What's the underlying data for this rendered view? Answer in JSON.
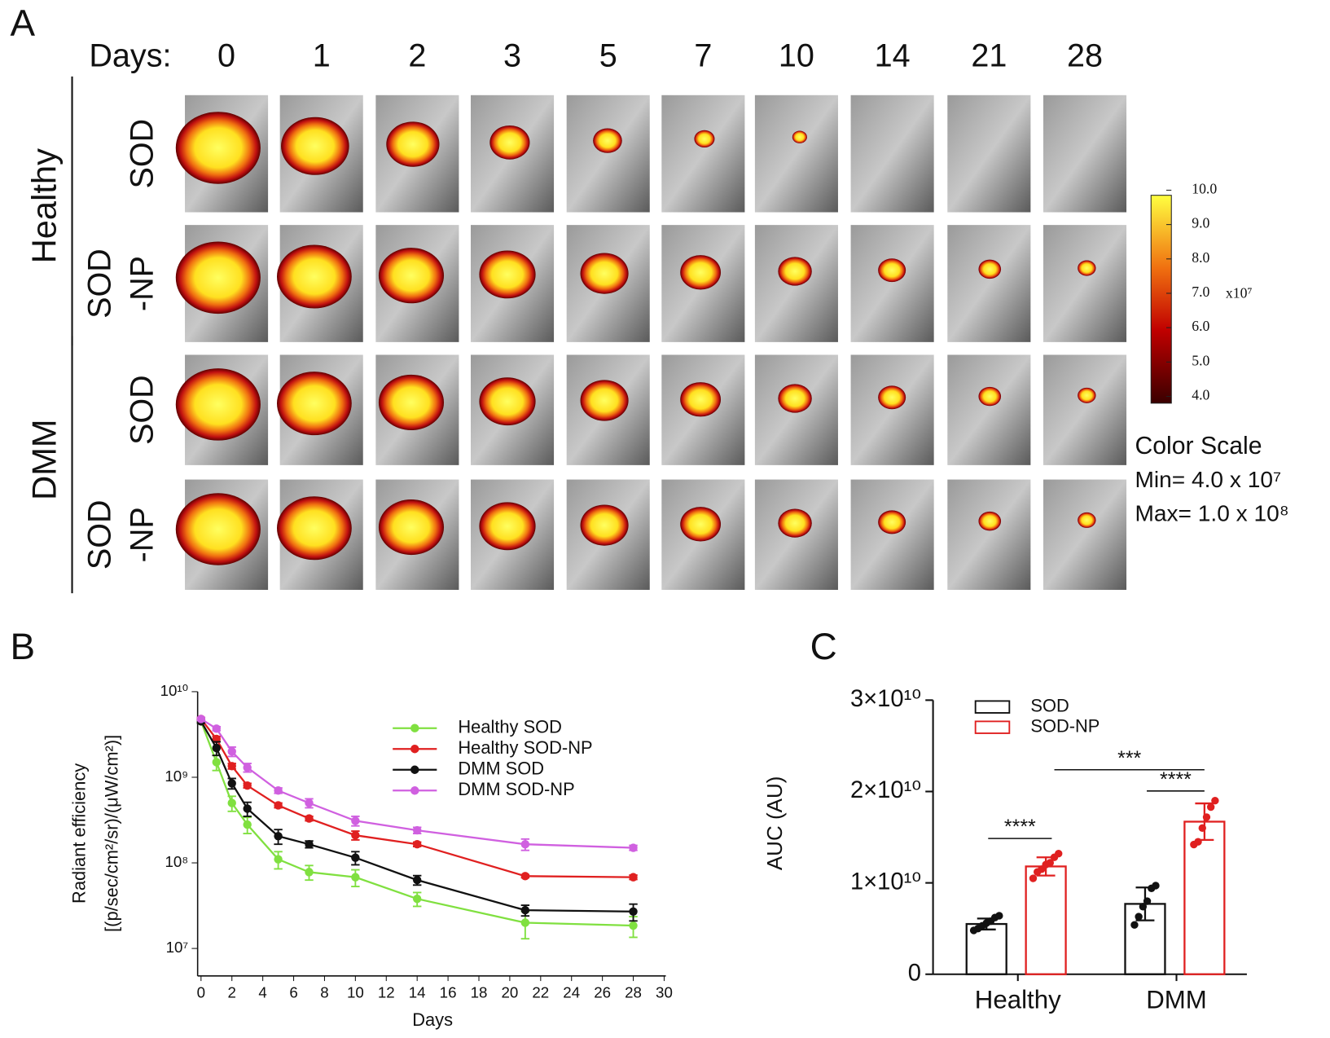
{
  "panel_a": {
    "label": "A",
    "days_label": "Days:",
    "days": [
      0,
      1,
      2,
      3,
      5,
      7,
      10,
      14,
      21,
      28
    ],
    "groups": [
      {
        "name": "Healthy",
        "rows": [
          {
            "label": [
              "SOD"
            ]
          },
          {
            "label": [
              "SOD",
              "-NP"
            ]
          }
        ]
      },
      {
        "name": "DMM",
        "rows": [
          {
            "label": [
              "SOD"
            ]
          },
          {
            "label": [
              "SOD",
              "-NP"
            ]
          }
        ]
      }
    ],
    "colorbar": {
      "lim": [
        4,
        10
      ],
      "ticks": [
        {
          "value": 4,
          "label": "4.0"
        },
        {
          "value": 5,
          "label": "5.0"
        },
        {
          "value": 6,
          "label": "6.0"
        },
        {
          "value": 7,
          "label": "7.0"
        },
        {
          "value": 8,
          "label": "8.0"
        },
        {
          "value": 9,
          "label": "9.0"
        },
        {
          "value": 10,
          "label": "10.0"
        }
      ],
      "multiplier": "x10⁷"
    },
    "color_scale": {
      "title": "Color Scale",
      "min": "Min= 4.0 x 10⁷",
      "max": "Max= 1.0 x 10⁸"
    }
  },
  "chart_data": [
    {
      "type": "line",
      "panel_label": "B",
      "x_label": "Days",
      "y_label": [
        "Radiant efficiency",
        "[(p/sec/cm²/sr)/(μW/cm²)]"
      ],
      "x": [
        0,
        1,
        2,
        3,
        5,
        7,
        10,
        14,
        21,
        28
      ],
      "xlim": [
        0,
        30
      ],
      "xticks": [
        0,
        2,
        4,
        6,
        8,
        10,
        12,
        14,
        16,
        18,
        20,
        22,
        24,
        26,
        28,
        30
      ],
      "ylim": [
        6000000,
        10000000000
      ],
      "yscale": "log",
      "yticks": [
        {
          "value": 10000000,
          "label": "10⁷"
        },
        {
          "value": 100000000,
          "label": "10⁸"
        },
        {
          "value": 1000000000,
          "label": "10⁹"
        },
        {
          "value": 10000000000,
          "label": "10¹⁰"
        }
      ],
      "series": [
        {
          "name": "Healthy SOD",
          "color": "#80e040",
          "values": [
            4500000000.0,
            1500000000.0,
            500000000.0,
            280000000.0,
            110000000.0,
            78000000.0,
            68000000.0,
            38000000.0,
            20000000.0,
            18500000.0
          ],
          "errors": [
            200000000.0,
            300000000.0,
            100000000.0,
            60000000.0,
            25000000.0,
            15000000.0,
            15000000.0,
            7000000.0,
            7000000.0,
            5000000.0
          ]
        },
        {
          "name": "Healthy SOD-NP",
          "color": "#e02020",
          "values": [
            4800000000.0,
            2800000000.0,
            1350000000.0,
            800000000.0,
            470000000.0,
            330000000.0,
            210000000.0,
            165000000.0,
            70000000.0,
            68000000.0
          ],
          "errors": [
            200000000.0,
            200000000.0,
            100000000.0,
            50000000.0,
            30000000.0,
            20000000.0,
            25000000.0,
            10000000.0,
            3000000.0,
            4000000.0
          ]
        },
        {
          "name": "DMM SOD",
          "color": "#111111",
          "values": [
            4500000000.0,
            2200000000.0,
            850000000.0,
            430000000.0,
            205000000.0,
            165000000.0,
            115000000.0,
            63000000.0,
            28000000.0,
            27000000.0
          ],
          "errors": [
            200000000.0,
            400000000.0,
            120000000.0,
            80000000.0,
            40000000.0,
            15000000.0,
            20000000.0,
            8000000.0,
            4000000.0,
            6000000.0
          ]
        },
        {
          "name": "DMM SOD-NP",
          "color": "#d060e0",
          "values": [
            4800000000.0,
            3700000000.0,
            2000000000.0,
            1300000000.0,
            700000000.0,
            500000000.0,
            310000000.0,
            240000000.0,
            165000000.0,
            150000000.0
          ],
          "errors": [
            200000000.0,
            200000000.0,
            250000000.0,
            150000000.0,
            50000000.0,
            60000000.0,
            40000000.0,
            20000000.0,
            25000000.0,
            10000000.0
          ]
        }
      ]
    },
    {
      "type": "bar",
      "panel_label": "C",
      "y_label": "AUC (AU)",
      "categories": [
        "Healthy",
        "DMM"
      ],
      "ylim": [
        0,
        30000000000
      ],
      "yticks": [
        0,
        {
          "value": 10000000000,
          "label": "1×10¹⁰"
        },
        {
          "value": 20000000000,
          "label": "2×10¹⁰"
        },
        {
          "value": 30000000000,
          "label": "3×10¹⁰"
        }
      ],
      "series": [
        {
          "name": "SOD",
          "color": "#111111",
          "values": [
            5500000000.0,
            7700000000.0
          ],
          "errors": [
            600000000.0,
            1800000000.0
          ],
          "points": [
            [
              4800000000.0,
              5000000000.0,
              5300000000.0,
              5600000000.0,
              5800000000.0,
              6200000000.0,
              6400000000.0
            ],
            [
              5400000000.0,
              6300000000.0,
              7400000000.0,
              8000000000.0,
              9400000000.0,
              9700000000.0
            ]
          ]
        },
        {
          "name": "SOD-NP",
          "color": "#e02020",
          "values": [
            11800000000.0,
            16700000000.0
          ],
          "errors": [
            1000000000.0,
            2000000000.0
          ],
          "points": [
            [
              10500000000.0,
              11200000000.0,
              11500000000.0,
              12000000000.0,
              12200000000.0,
              12800000000.0,
              13200000000.0
            ],
            [
              14200000000.0,
              14500000000.0,
              16000000000.0,
              17200000000.0,
              18300000000.0,
              19000000000.0
            ]
          ]
        }
      ],
      "annotations": [
        "****",
        "***",
        "****"
      ]
    }
  ]
}
